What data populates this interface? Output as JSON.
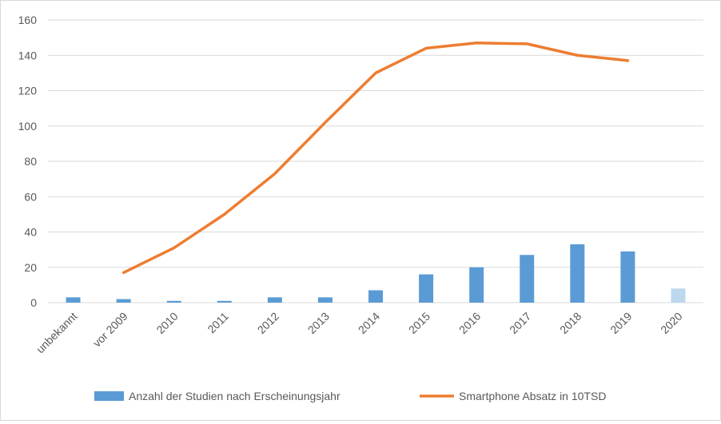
{
  "chart_data": {
    "type": "bar",
    "categories": [
      "unbekannt",
      "vor 2009",
      "2010",
      "2011",
      "2012",
      "2013",
      "2014",
      "2015",
      "2016",
      "2017",
      "2018",
      "2019",
      "2020"
    ],
    "series": [
      {
        "name": "Anzahl der Studien nach Erscheinungsjahr",
        "kind": "bar",
        "color": "#5b9bd5",
        "highlight_color": "#bdd7ee",
        "highlight_index": 12,
        "values": [
          3,
          2,
          1,
          1,
          3,
          3,
          7,
          16,
          20,
          27,
          33,
          29,
          8
        ]
      },
      {
        "name": "Smartphone Absatz in 10TSD",
        "kind": "line",
        "color": "#ed7d31",
        "values": [
          null,
          17,
          31,
          50,
          73,
          102,
          130,
          144,
          147,
          146.5,
          140,
          137,
          null
        ]
      }
    ],
    "ylim": [
      0,
      160
    ],
    "yticks": [
      0,
      20,
      40,
      60,
      80,
      100,
      120,
      140,
      160
    ],
    "grid": true,
    "legend_position": "bottom",
    "title": "",
    "xlabel": "",
    "ylabel": ""
  }
}
